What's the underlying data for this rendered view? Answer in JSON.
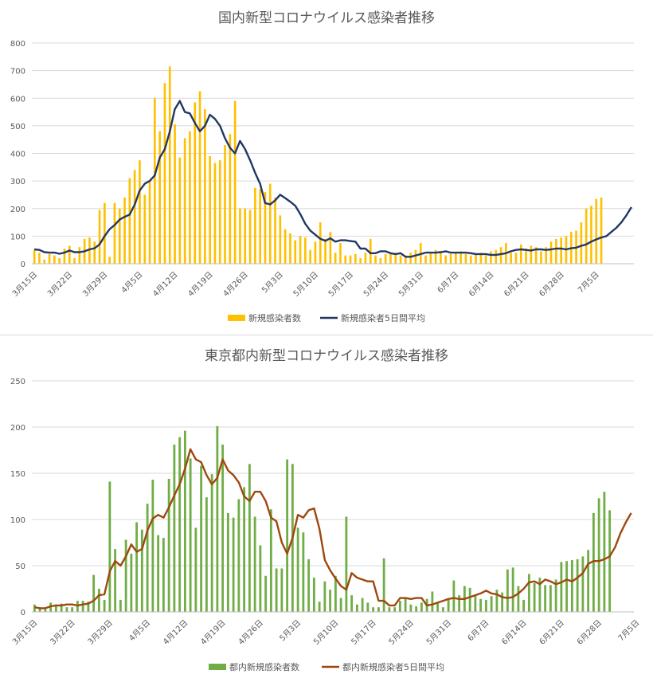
{
  "chart_data": [
    {
      "type": "bar+line",
      "title": "国内新型コロナウイルス感染者推移",
      "ylim": [
        0,
        800
      ],
      "yticks": [
        0,
        100,
        200,
        300,
        400,
        500,
        600,
        700,
        800
      ],
      "grid": true,
      "legend_position": "bottom",
      "xtick_labels": [
        "3月15日",
        "3月22日",
        "3月29日",
        "4月5日",
        "4月12日",
        "4月19日",
        "4月26日",
        "5月3日",
        "5月10日",
        "5月17日",
        "5月24日",
        "5月31日",
        "6月7日",
        "6月14日",
        "6月21日",
        "6月28日",
        "7月5日"
      ],
      "series": [
        {
          "name": "新規感染者数",
          "kind": "bar",
          "color": "#ffc000",
          "values": [
            50,
            40,
            15,
            35,
            30,
            20,
            55,
            65,
            20,
            60,
            90,
            95,
            80,
            195,
            220,
            25,
            220,
            200,
            240,
            310,
            340,
            375,
            250,
            300,
            600,
            480,
            655,
            715,
            505,
            385,
            455,
            480,
            585,
            625,
            560,
            390,
            365,
            375,
            430,
            470,
            590,
            200,
            200,
            195,
            275,
            270,
            260,
            290,
            240,
            175,
            125,
            110,
            85,
            100,
            95,
            50,
            80,
            150,
            90,
            115,
            40,
            75,
            30,
            30,
            35,
            20,
            40,
            90,
            30,
            20,
            35,
            40,
            40,
            30,
            30,
            40,
            50,
            75,
            30,
            40,
            50,
            45,
            30,
            35,
            40,
            45,
            35,
            30,
            35,
            40,
            30,
            45,
            50,
            60,
            75,
            40,
            40,
            70,
            55,
            65,
            60,
            45,
            60,
            80,
            90,
            95,
            100,
            115,
            120,
            150,
            200,
            210,
            235,
            240
          ]
        },
        {
          "name": "新規感染者5日間平均",
          "kind": "line",
          "color": "#203864",
          "values": [
            52,
            50,
            42,
            40,
            40,
            36,
            40,
            48,
            42,
            42,
            45,
            52,
            56,
            70,
            100,
            125,
            140,
            160,
            170,
            178,
            215,
            265,
            290,
            300,
            320,
            385,
            415,
            480,
            560,
            590,
            550,
            545,
            510,
            480,
            500,
            540,
            525,
            500,
            455,
            420,
            400,
            445,
            415,
            375,
            330,
            290,
            220,
            215,
            230,
            250,
            238,
            225,
            210,
            180,
            145,
            120,
            105,
            90,
            83,
            92,
            80,
            85,
            85,
            82,
            80,
            55,
            55,
            38,
            38,
            45,
            45,
            38,
            35,
            38,
            25,
            25,
            30,
            35,
            40,
            40,
            40,
            42,
            45,
            40,
            40,
            40,
            40,
            38,
            35,
            35,
            35,
            32,
            32,
            35,
            38,
            45,
            50,
            52,
            50,
            48,
            52,
            52,
            50,
            52,
            55,
            55,
            52,
            56,
            58,
            65,
            70,
            80,
            88,
            95,
            100,
            115,
            130,
            150,
            175,
            205
          ]
        }
      ],
      "legend": [
        "新規感染者数",
        "新規感染者5日間平均"
      ]
    },
    {
      "type": "bar+line",
      "title": "東京都内新型コロナウイルス感染者推移",
      "ylim": [
        0,
        250
      ],
      "yticks": [
        0,
        50,
        100,
        150,
        200,
        250
      ],
      "grid": true,
      "legend_position": "bottom",
      "xtick_labels": [
        "3月15日",
        "3月22日",
        "3月29日",
        "4月5日",
        "4月12日",
        "4月19日",
        "4月26日",
        "5月3日",
        "5月10日",
        "5月17日",
        "5月24日",
        "5月31日",
        "6月7日",
        "6月14日",
        "6月21日",
        "6月28日",
        "7月5日"
      ],
      "series": [
        {
          "name": "都内新規感染者数",
          "kind": "bar",
          "color": "#70ad47",
          "values": [
            8,
            5,
            3,
            10,
            8,
            9,
            5,
            5,
            12,
            12,
            11,
            40,
            25,
            13,
            141,
            68,
            13,
            78,
            63,
            97,
            89,
            117,
            143,
            83,
            80,
            144,
            181,
            189,
            196,
            166,
            91,
            158,
            124,
            149,
            201,
            181,
            107,
            102,
            122,
            135,
            160,
            103,
            72,
            39,
            111,
            47,
            47,
            165,
            160,
            91,
            86,
            57,
            37,
            11,
            33,
            24,
            39,
            15,
            103,
            18,
            8,
            15,
            10,
            5,
            5,
            58,
            5,
            5,
            12,
            15,
            8,
            6,
            10,
            14,
            22,
            10,
            5,
            13,
            34,
            18,
            28,
            26,
            18,
            14,
            13,
            17,
            24,
            21,
            46,
            48,
            28,
            13,
            41,
            31,
            37,
            29,
            29,
            35,
            54,
            55,
            56,
            57,
            60,
            67,
            107,
            123,
            130,
            110
          ]
        },
        {
          "name": "都内新規感染者5日間平均",
          "kind": "line",
          "color": "#9e480e",
          "values": [
            5,
            4,
            4,
            6,
            7,
            7,
            8,
            8,
            7,
            8,
            9,
            12,
            18,
            19,
            44,
            55,
            50,
            60,
            73,
            65,
            68,
            88,
            101,
            105,
            102,
            113,
            126,
            138,
            155,
            176,
            165,
            162,
            148,
            138,
            145,
            165,
            153,
            148,
            140,
            125,
            120,
            130,
            130,
            120,
            102,
            98,
            75,
            63,
            80,
            105,
            102,
            110,
            112,
            90,
            56,
            45,
            36,
            28,
            24,
            42,
            37,
            35,
            33,
            33,
            12,
            12,
            7,
            7,
            15,
            15,
            14,
            15,
            15,
            7,
            8,
            10,
            12,
            14,
            15,
            14,
            14,
            16,
            18,
            20,
            23,
            20,
            19,
            16,
            15,
            16,
            20,
            25,
            32,
            33,
            30,
            35,
            33,
            30,
            32,
            35,
            33,
            37,
            42,
            52,
            55,
            55,
            57,
            60,
            70,
            85,
            97,
            107
          ]
        }
      ],
      "legend": [
        "都内新規感染者数",
        "都内新規感染者5日間平均"
      ]
    }
  ]
}
